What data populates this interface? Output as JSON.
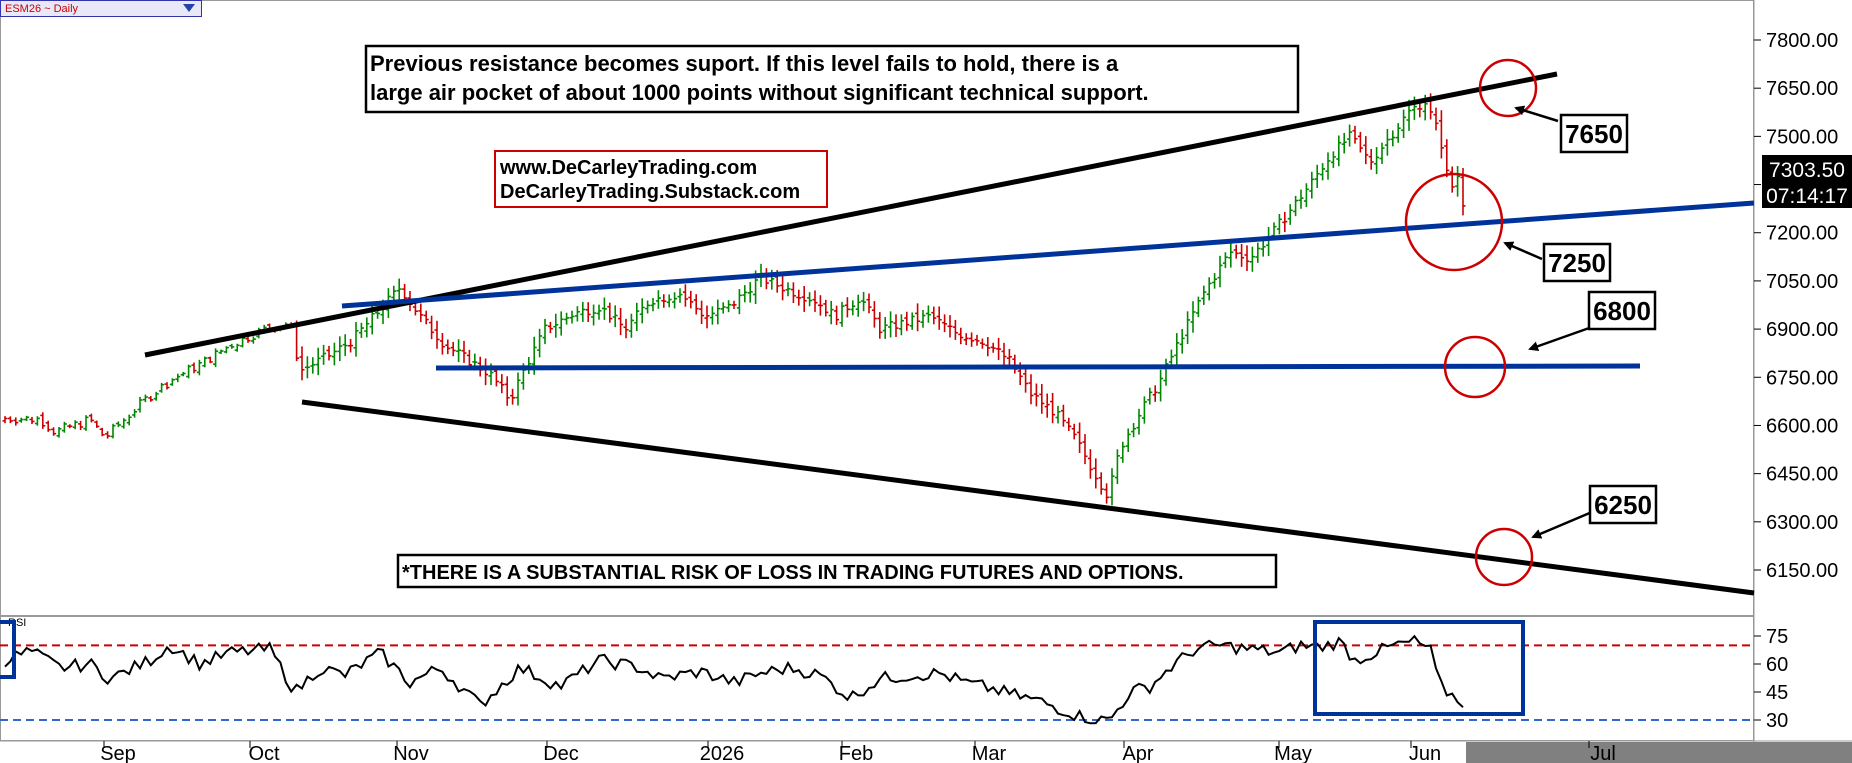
{
  "symbol": {
    "label": "ESM26 ~ Daily"
  },
  "chart_data": {
    "type": "ohlc-bar",
    "price_axis": {
      "ticks": [
        6150,
        6300,
        6450,
        6600,
        6750,
        6900,
        7050,
        7200,
        7350,
        7500,
        7650,
        7800
      ],
      "tick_labels": [
        "6150.00",
        "6300.00",
        "6450.00",
        "6600.00",
        "6750.00",
        "6900.00",
        "7050.00",
        "7200.00",
        "",
        "7500.00",
        "7650.00",
        "7800.00"
      ],
      "range": [
        6030,
        7880
      ]
    },
    "months": [
      "Sep",
      "Oct",
      "Nov",
      "Dec",
      "2026",
      "Feb",
      "Mar",
      "Apr",
      "May",
      "Jun",
      "Jul"
    ],
    "current_price": "7303.50",
    "countdown": "07:14:17",
    "title_note": "Previous resistance becomes suport. If this level fails to hold, there is a large air pocket of about 1000 points without significant technical support.",
    "note_lines": [
      "Previous resistance becomes suport. If this level fails to hold, there is a",
      "large air pocket of about 1000 points without significant technical support."
    ],
    "website_lines": [
      "www.DeCarleyTrading.com",
      "DeCarleyTrading.Substack.com"
    ],
    "disclaimer": "*THERE IS A SUBSTANTIAL RISK OF LOSS IN TRADING FUTURES AND OPTIONS.",
    "levels": [
      {
        "label": "7650",
        "price": 7650
      },
      {
        "label": "7250",
        "price": 7250
      },
      {
        "label": "6800",
        "price": 6800
      },
      {
        "label": "6250",
        "price": 6250
      }
    ],
    "rsi": {
      "label": "RSI",
      "ticks": [
        30,
        45,
        60,
        75
      ],
      "tick_labels": [
        "30",
        "45",
        "60",
        "75"
      ],
      "overbought": 70,
      "oversold": 30,
      "range": [
        28,
        80
      ]
    },
    "colors": {
      "up": "#008800",
      "down": "#cc0000",
      "trend_black": "#000000",
      "trend_blue": "#003399",
      "circle": "#cc0000",
      "rsi_ob": "#cc0000",
      "rsi_os": "#3366cc"
    }
  }
}
